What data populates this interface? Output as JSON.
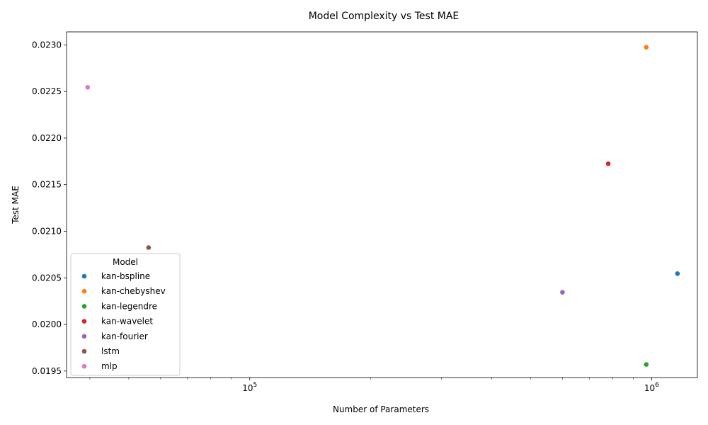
{
  "chart_data": {
    "type": "scatter",
    "title": "Model Complexity vs Test MAE",
    "xlabel": "Number of Parameters",
    "ylabel": "Test MAE",
    "xscale": "log",
    "xlim": [
      35000,
      1300000
    ],
    "ylim": [
      0.01943,
      0.02314
    ],
    "x_major_ticks": [
      100000,
      1000000
    ],
    "x_major_tick_labels": [
      {
        "base": "10",
        "exp": "5"
      },
      {
        "base": "10",
        "exp": "6"
      }
    ],
    "y_ticks": [
      0.0195,
      0.02,
      0.0205,
      0.021,
      0.0215,
      0.022,
      0.0225,
      0.023
    ],
    "y_tick_labels": [
      "0.0195",
      "0.0200",
      "0.0205",
      "0.0210",
      "0.0215",
      "0.0220",
      "0.0225",
      "0.0230"
    ],
    "grid": false,
    "legend": {
      "title": "Model",
      "position": "lower-left"
    },
    "series": [
      {
        "name": "kan-bspline",
        "color": "#1f77b4",
        "points": [
          {
            "x": 1160000,
            "y": 0.020545
          }
        ]
      },
      {
        "name": "kan-chebyshev",
        "color": "#ff7f0e",
        "points": [
          {
            "x": 970000,
            "y": 0.022975
          }
        ]
      },
      {
        "name": "kan-legendre",
        "color": "#2ca02c",
        "points": [
          {
            "x": 970000,
            "y": 0.01957
          }
        ]
      },
      {
        "name": "kan-wavelet",
        "color": "#d62728",
        "points": [
          {
            "x": 780000,
            "y": 0.021725
          }
        ]
      },
      {
        "name": "kan-fourier",
        "color": "#9467bd",
        "points": [
          {
            "x": 600000,
            "y": 0.020345
          }
        ]
      },
      {
        "name": "lstm",
        "color": "#8c564b",
        "points": [
          {
            "x": 56000,
            "y": 0.020825
          }
        ]
      },
      {
        "name": "mlp",
        "color": "#e377c2",
        "points": [
          {
            "x": 39500,
            "y": 0.022545
          }
        ]
      }
    ]
  }
}
